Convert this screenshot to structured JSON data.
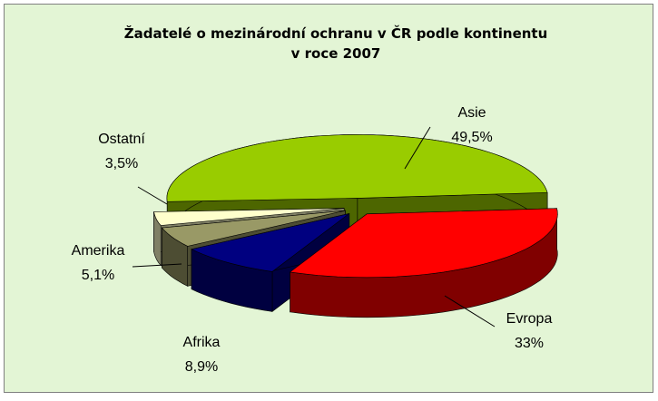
{
  "chart_data": {
    "type": "pie3d",
    "title": [
      "Žadatelé o mezinárodní ochranu v ČR podle kontinentu",
      "v roce 2007"
    ],
    "categories": [
      "Evropa",
      "Afrika",
      "Amerika",
      "Ostatní",
      "Asie"
    ],
    "values": [
      33,
      8.9,
      5.1,
      3.5,
      49.5
    ],
    "value_labels": [
      "33%",
      "8,9%",
      "5,1%",
      "3,5%",
      "49,5%"
    ],
    "colors": [
      "#ff0000",
      "#000080",
      "#999966",
      "#ffffcc",
      "#99cc00"
    ]
  }
}
